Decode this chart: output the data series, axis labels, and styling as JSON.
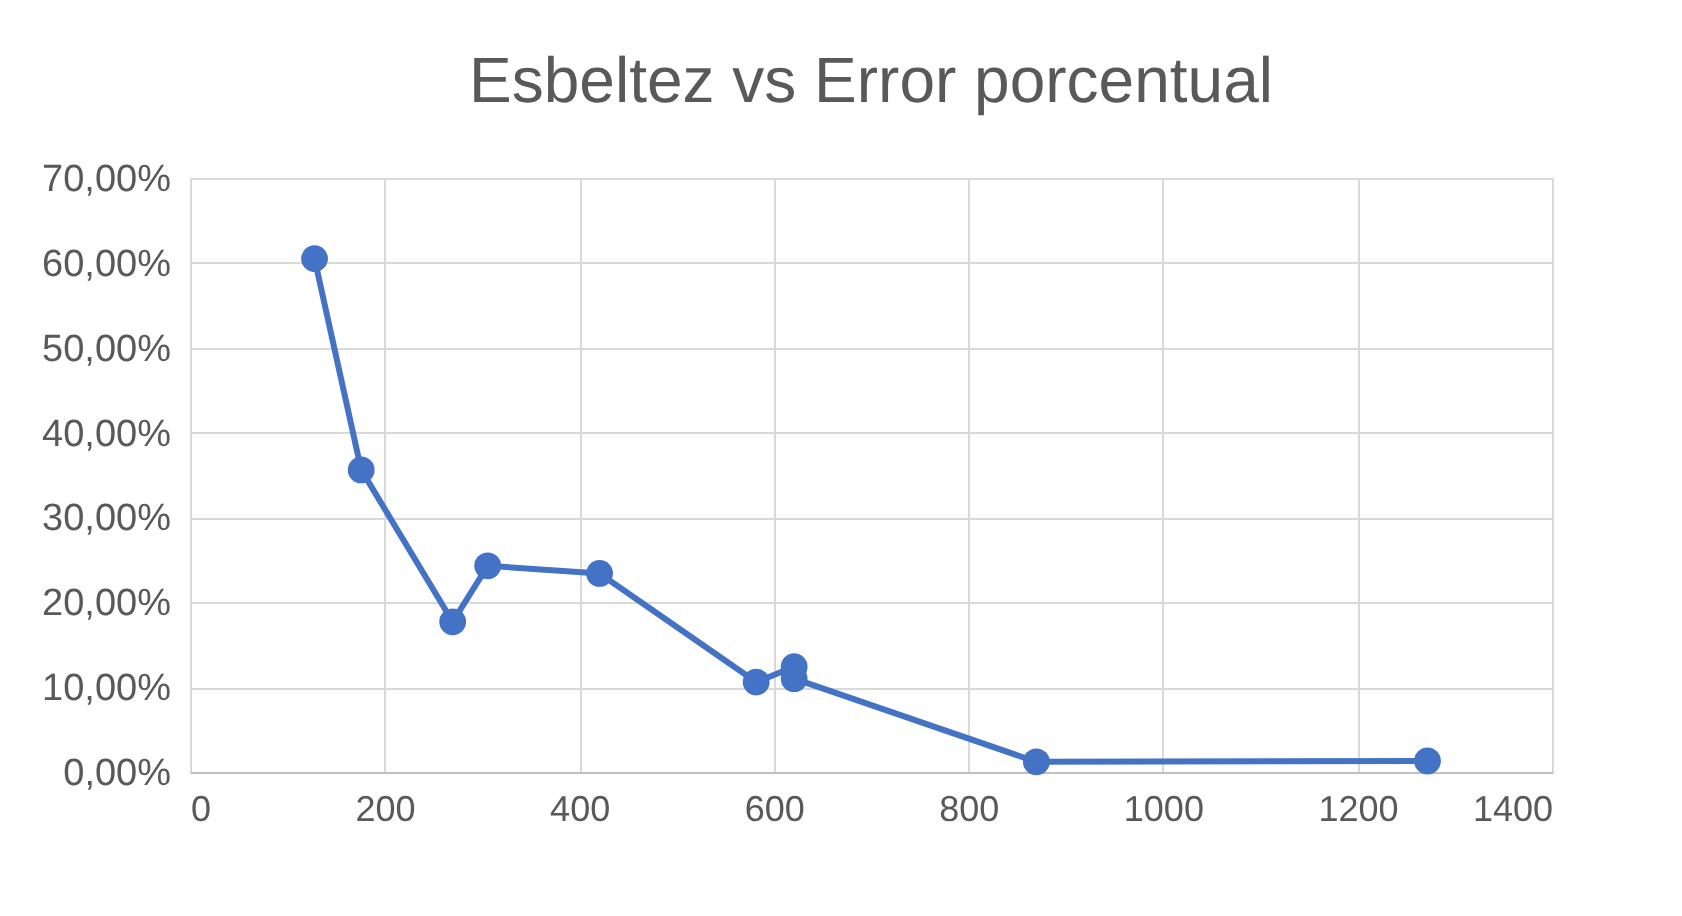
{
  "chart_data": {
    "type": "line",
    "title": "Esbeltez vs Error porcentual",
    "x": [
      128,
      176,
      270,
      306,
      421,
      582,
      621,
      621,
      870,
      1272
    ],
    "series": [
      {
        "color": "#4472c4",
        "values": [
          60.5,
          35.6,
          17.7,
          24.3,
          23.4,
          10.6,
          12.4,
          11.0,
          1.2,
          1.3
        ]
      }
    ],
    "xlim": [
      0,
      1400
    ],
    "xticks": [
      0,
      200,
      400,
      600,
      800,
      1000,
      1200,
      1400
    ],
    "ylim": [
      0,
      70
    ],
    "yticks": [
      {
        "value": 0,
        "label": "0,00%"
      },
      {
        "value": 10,
        "label": "10,00%"
      },
      {
        "value": 20,
        "label": "20,00%"
      },
      {
        "value": 30,
        "label": "30,00%"
      },
      {
        "value": 40,
        "label": "40,00%"
      },
      {
        "value": 50,
        "label": "50,00%"
      },
      {
        "value": 60,
        "label": "60,00%"
      },
      {
        "value": 70,
        "label": "70,00%"
      }
    ],
    "grid": true,
    "marker": "circle",
    "line_style": "solid"
  }
}
